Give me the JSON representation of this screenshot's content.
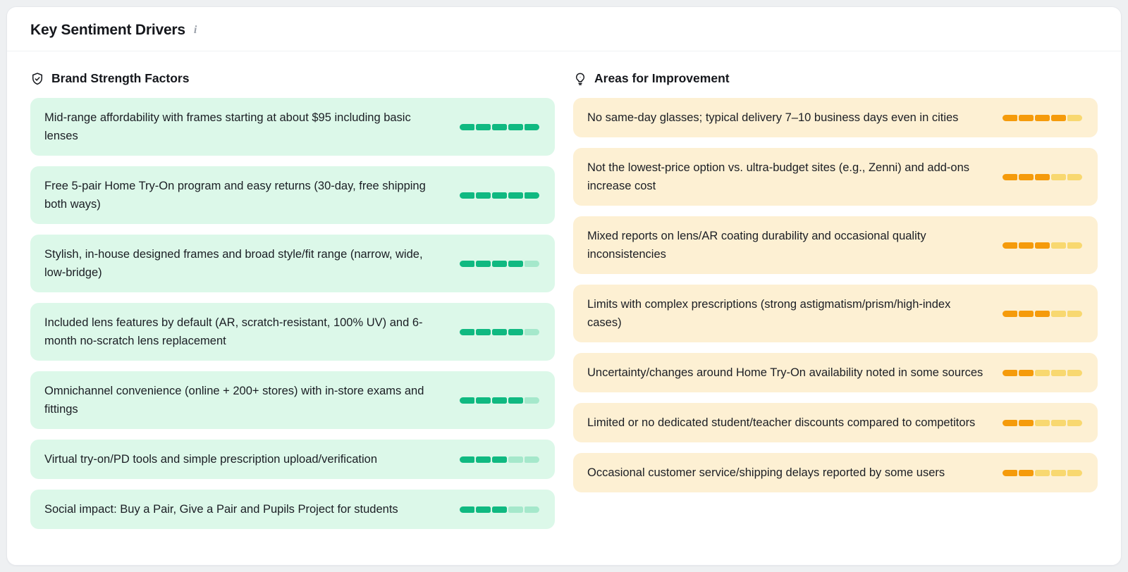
{
  "panel": {
    "title": "Key Sentiment Drivers",
    "info_icon": "i"
  },
  "bar": {
    "max_segments": 5
  },
  "columns": [
    {
      "id": "strengths",
      "header": "Brand Strength Factors",
      "icon": "shield-check-icon",
      "theme": {
        "item_bg": "#dcf8e9",
        "bar_filled": "#10b981",
        "bar_empty": "#a5e8cb"
      },
      "items": [
        {
          "text": "Mid-range affordability with frames starting at about $95 including basic lenses",
          "score": 5,
          "max": 5
        },
        {
          "text": "Free 5-pair Home Try-On program and easy returns (30-day, free shipping both ways)",
          "score": 5,
          "max": 5
        },
        {
          "text": "Stylish, in-house designed frames and broad style/fit range (narrow, wide, low-bridge)",
          "score": 4,
          "max": 5
        },
        {
          "text": "Included lens features by default (AR, scratch-resistant, 100% UV) and 6-month no-scratch lens replacement",
          "score": 4,
          "max": 5
        },
        {
          "text": "Omnichannel convenience (online + 200+ stores) with in-store exams and fittings",
          "score": 4,
          "max": 5
        },
        {
          "text": "Virtual try-on/PD tools and simple prescription upload/verification",
          "score": 3,
          "max": 5
        },
        {
          "text": "Social impact: Buy a Pair, Give a Pair and Pupils Project for students",
          "score": 3,
          "max": 5
        }
      ]
    },
    {
      "id": "improvements",
      "header": "Areas for Improvement",
      "icon": "lightbulb-icon",
      "theme": {
        "item_bg": "#fdf0d3",
        "bar_filled": "#f59b0b",
        "bar_empty": "#f8d870"
      },
      "items": [
        {
          "text": "No same-day glasses; typical delivery 7–10 business days even in cities",
          "score": 4,
          "max": 5
        },
        {
          "text": "Not the lowest-price option vs. ultra-budget sites (e.g., Zenni) and add-ons increase cost",
          "score": 3,
          "max": 5
        },
        {
          "text": "Mixed reports on lens/AR coating durability and occasional quality inconsistencies",
          "score": 3,
          "max": 5
        },
        {
          "text": "Limits with complex prescriptions (strong astigmatism/prism/high-index cases)",
          "score": 3,
          "max": 5
        },
        {
          "text": "Uncertainty/changes around Home Try-On availability noted in some sources",
          "score": 2,
          "max": 5
        },
        {
          "text": "Limited or no dedicated student/teacher discounts compared to competitors",
          "score": 2,
          "max": 5
        },
        {
          "text": "Occasional customer service/shipping delays reported by some users",
          "score": 2,
          "max": 5
        }
      ]
    }
  ]
}
